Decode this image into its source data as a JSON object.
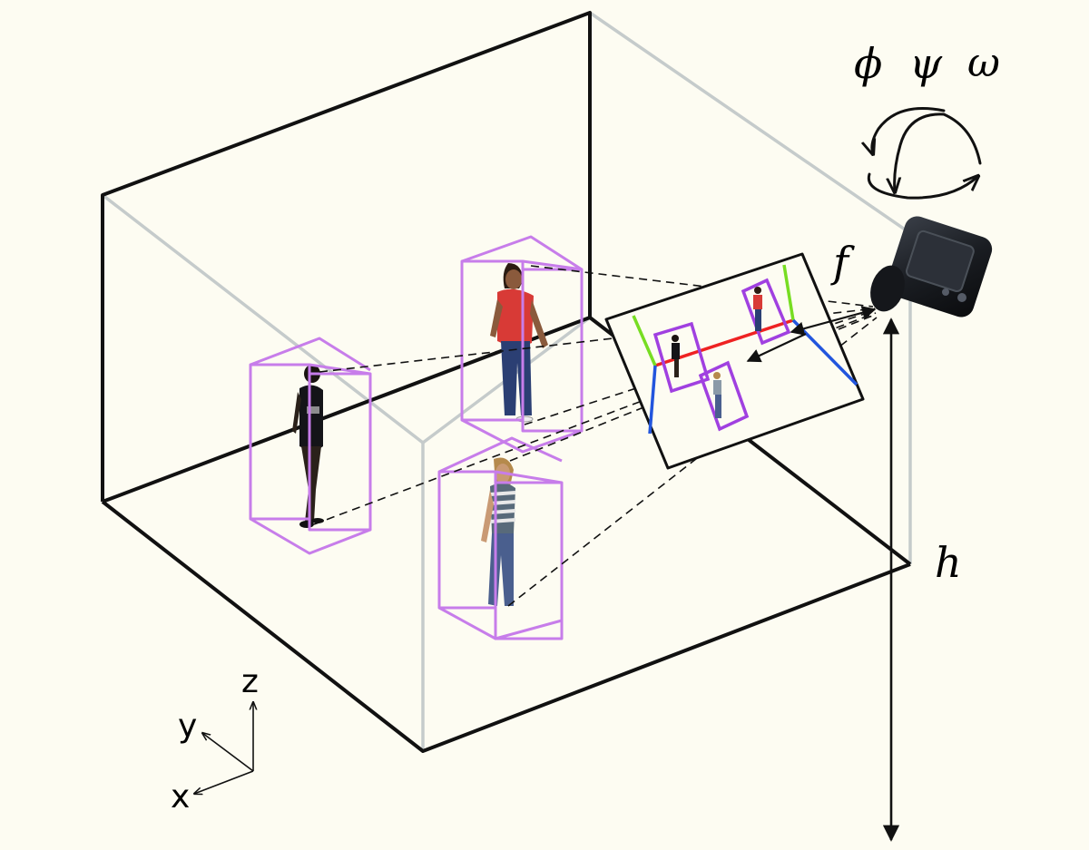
{
  "labels": {
    "rotation_phi": "ϕ",
    "rotation_psi": "ψ",
    "rotation_omega": "ω",
    "focal_length": "f",
    "camera_height": "h",
    "axis_x": "x",
    "axis_y": "y",
    "axis_z": "z"
  },
  "colors": {
    "background": "#fdfcf2",
    "room_edge_front": "#111111",
    "room_edge_back": "#c5cbcb",
    "person_box": "#c77dea",
    "image_box": "#a040e0",
    "vanishing_red": "#ee2222",
    "vanishing_green": "#77dd22",
    "vanishing_blue": "#2255dd"
  },
  "icons": {
    "camera": "camera-icon",
    "rotation": "rotation-arrows-icon"
  }
}
